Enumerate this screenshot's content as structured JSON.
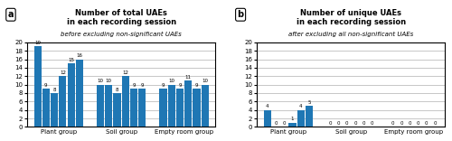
{
  "chart_data": [
    {
      "type": "bar",
      "title": "Number of total UAEs\nin each recording session",
      "subtitle": "before excluding non-significant UAEs",
      "annotations": [
        "a"
      ],
      "categories": [
        "Plant group",
        "Soil group",
        "Empty room group"
      ],
      "series": [
        {
          "values": [
            19,
            10,
            9
          ]
        },
        {
          "values": [
            9,
            10,
            10
          ]
        },
        {
          "values": [
            8,
            8,
            9
          ]
        },
        {
          "values": [
            12,
            12,
            11
          ]
        },
        {
          "values": [
            15,
            9,
            9
          ]
        },
        {
          "values": [
            16,
            9,
            10
          ]
        }
      ],
      "ylim": [
        0,
        20
      ],
      "yticks": [
        0,
        2,
        4,
        6,
        8,
        10,
        12,
        14,
        16,
        18,
        20
      ],
      "grid": true,
      "data_labels": true
    },
    {
      "type": "bar",
      "title": "Number of unique UAEs\nin each recording session",
      "subtitle": "after excluding all non-significant UAEs",
      "annotations": [
        "b"
      ],
      "categories": [
        "Plant group",
        "Soil group",
        "Empty room group"
      ],
      "series": [
        {
          "values": [
            4,
            0,
            0
          ]
        },
        {
          "values": [
            0,
            0,
            0
          ]
        },
        {
          "values": [
            0,
            0,
            0
          ]
        },
        {
          "values": [
            1,
            0,
            0
          ]
        },
        {
          "values": [
            4,
            0,
            0
          ]
        },
        {
          "values": [
            5,
            0,
            0
          ]
        }
      ],
      "ylim": [
        0,
        20
      ],
      "yticks": [
        0,
        2,
        4,
        6,
        8,
        10,
        12,
        14,
        16,
        18,
        20
      ],
      "grid": true,
      "data_labels": true
    }
  ]
}
